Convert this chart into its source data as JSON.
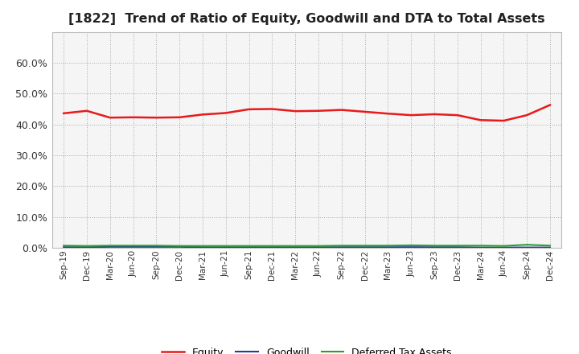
{
  "title": "[1822]  Trend of Ratio of Equity, Goodwill and DTA to Total Assets",
  "x_labels": [
    "Sep-19",
    "Dec-19",
    "Mar-20",
    "Jun-20",
    "Sep-20",
    "Dec-20",
    "Mar-21",
    "Jun-21",
    "Sep-21",
    "Dec-21",
    "Mar-22",
    "Jun-22",
    "Sep-22",
    "Dec-22",
    "Mar-23",
    "Jun-23",
    "Sep-23",
    "Dec-23",
    "Mar-24",
    "Jun-24",
    "Sep-24",
    "Dec-24"
  ],
  "equity": [
    0.436,
    0.444,
    0.422,
    0.423,
    0.422,
    0.423,
    0.432,
    0.437,
    0.449,
    0.45,
    0.443,
    0.444,
    0.447,
    0.441,
    0.435,
    0.43,
    0.433,
    0.43,
    0.414,
    0.412,
    0.43,
    0.463
  ],
  "goodwill": [
    0.002,
    0.002,
    0.003,
    0.003,
    0.003,
    0.003,
    0.002,
    0.002,
    0.002,
    0.002,
    0.002,
    0.002,
    0.002,
    0.002,
    0.002,
    0.002,
    0.002,
    0.002,
    0.001,
    0.001,
    0.001,
    0.001
  ],
  "dta": [
    0.007,
    0.006,
    0.007,
    0.007,
    0.007,
    0.006,
    0.006,
    0.006,
    0.006,
    0.006,
    0.006,
    0.006,
    0.007,
    0.007,
    0.007,
    0.008,
    0.007,
    0.007,
    0.007,
    0.006,
    0.01,
    0.007
  ],
  "equity_color": "#e8191a",
  "goodwill_color": "#1f3d99",
  "dta_color": "#2ca02c",
  "ylim": [
    0.0,
    0.7
  ],
  "yticks": [
    0.0,
    0.1,
    0.2,
    0.3,
    0.4,
    0.5,
    0.6
  ],
  "background_color": "#ffffff",
  "grid_color": "#aaaaaa",
  "title_fontsize": 11.5,
  "plot_bg_color": "#f5f5f5"
}
